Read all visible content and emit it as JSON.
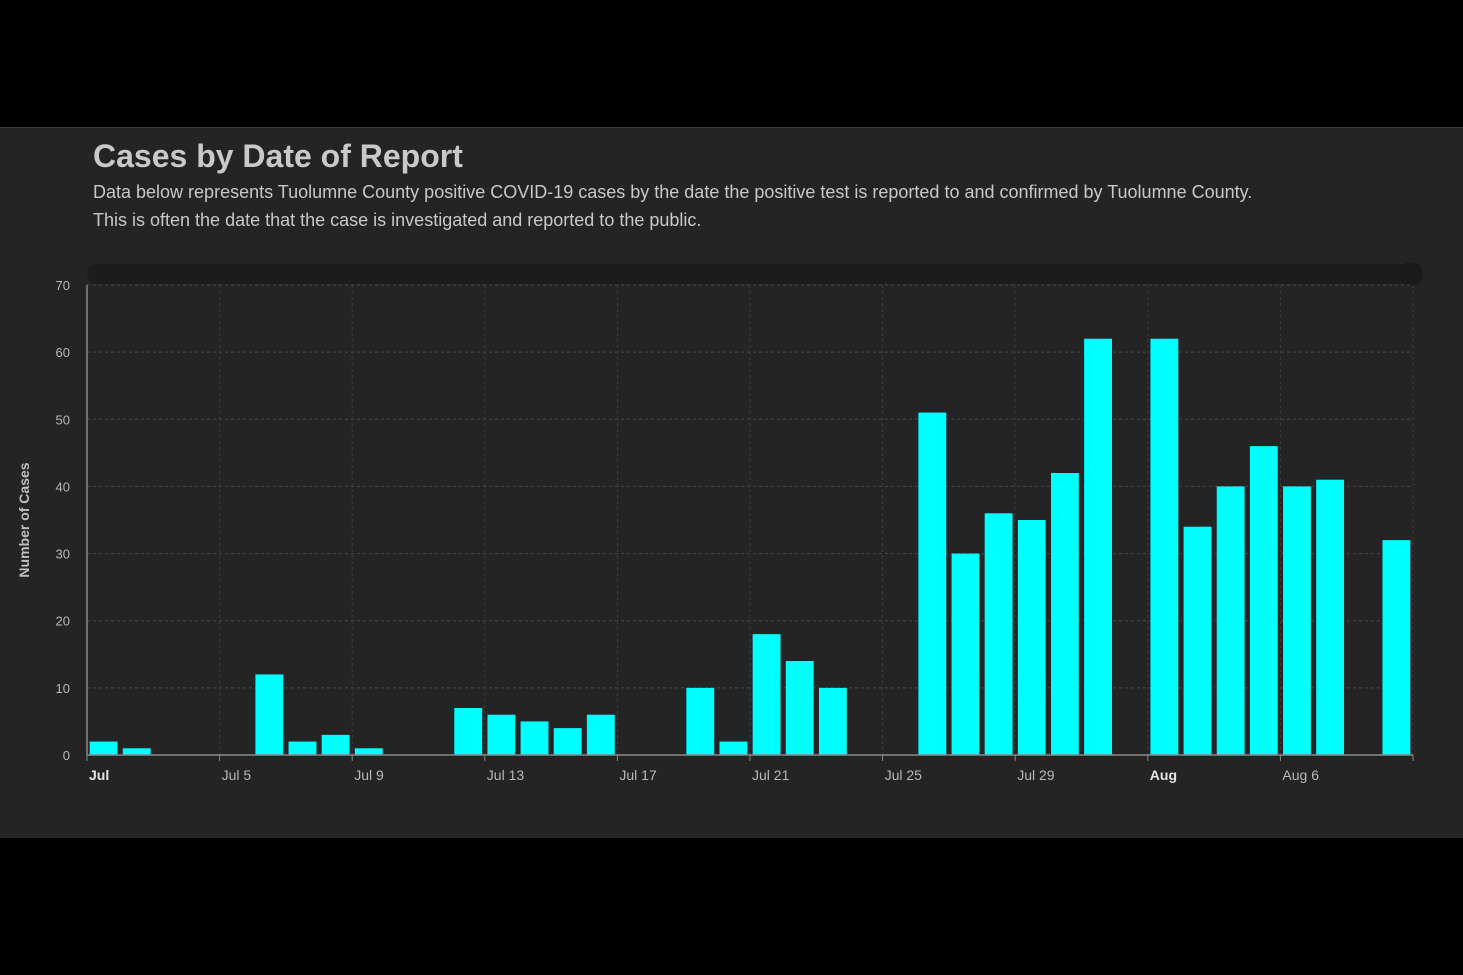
{
  "header": {
    "title": "Cases by Date of Report",
    "description": "Data below represents Tuolumne County positive COVID-19 cases by the date the positive test is reported to and confirmed by Tuolumne County.\n This is often the date  that the case is investigated and reported to the public."
  },
  "colors": {
    "bar": "#00ffff",
    "background": "#242424",
    "page": "#000000"
  },
  "chart_data": {
    "type": "bar",
    "title": "Cases by Date of Report",
    "ylabel": "Number of Cases",
    "xlabel": "",
    "ylim": [
      0,
      70
    ],
    "yticks": [
      0,
      10,
      20,
      30,
      40,
      50,
      60,
      70
    ],
    "grid": true,
    "xlim": [
      "2020-07-01",
      "2020-08-10"
    ],
    "xticks": [
      {
        "date": "2020-07-01",
        "label": "Jul",
        "bold": true
      },
      {
        "date": "2020-07-05",
        "label": "Jul 5",
        "bold": false
      },
      {
        "date": "2020-07-09",
        "label": "Jul 9",
        "bold": false
      },
      {
        "date": "2020-07-13",
        "label": "Jul 13",
        "bold": false
      },
      {
        "date": "2020-07-17",
        "label": "Jul 17",
        "bold": false
      },
      {
        "date": "2020-07-21",
        "label": "Jul 21",
        "bold": false
      },
      {
        "date": "2020-07-25",
        "label": "Jul 25",
        "bold": false
      },
      {
        "date": "2020-07-29",
        "label": "Jul 29",
        "bold": false
      },
      {
        "date": "2020-08-02",
        "label": "Aug",
        "bold": true
      },
      {
        "date": "2020-08-06",
        "label": "Aug 6",
        "bold": false
      }
    ],
    "series": [
      {
        "points": [
          {
            "date": "2020-07-01",
            "value": 2
          },
          {
            "date": "2020-07-02",
            "value": 1
          },
          {
            "date": "2020-07-06",
            "value": 12
          },
          {
            "date": "2020-07-07",
            "value": 2
          },
          {
            "date": "2020-07-08",
            "value": 3
          },
          {
            "date": "2020-07-09",
            "value": 1
          },
          {
            "date": "2020-07-12",
            "value": 7
          },
          {
            "date": "2020-07-13",
            "value": 6
          },
          {
            "date": "2020-07-14",
            "value": 5
          },
          {
            "date": "2020-07-15",
            "value": 4
          },
          {
            "date": "2020-07-16",
            "value": 6
          },
          {
            "date": "2020-07-19",
            "value": 10
          },
          {
            "date": "2020-07-20",
            "value": 2
          },
          {
            "date": "2020-07-21",
            "value": 18
          },
          {
            "date": "2020-07-22",
            "value": 14
          },
          {
            "date": "2020-07-23",
            "value": 10
          },
          {
            "date": "2020-07-26",
            "value": 51
          },
          {
            "date": "2020-07-27",
            "value": 30
          },
          {
            "date": "2020-07-28",
            "value": 36
          },
          {
            "date": "2020-07-29",
            "value": 35
          },
          {
            "date": "2020-07-30",
            "value": 42
          },
          {
            "date": "2020-07-31",
            "value": 62
          },
          {
            "date": "2020-08-02",
            "value": 62
          },
          {
            "date": "2020-08-03",
            "value": 34
          },
          {
            "date": "2020-08-04",
            "value": 40
          },
          {
            "date": "2020-08-05",
            "value": 46
          },
          {
            "date": "2020-08-06",
            "value": 40
          },
          {
            "date": "2020-08-07",
            "value": 41
          },
          {
            "date": "2020-08-09",
            "value": 32
          }
        ]
      }
    ]
  }
}
